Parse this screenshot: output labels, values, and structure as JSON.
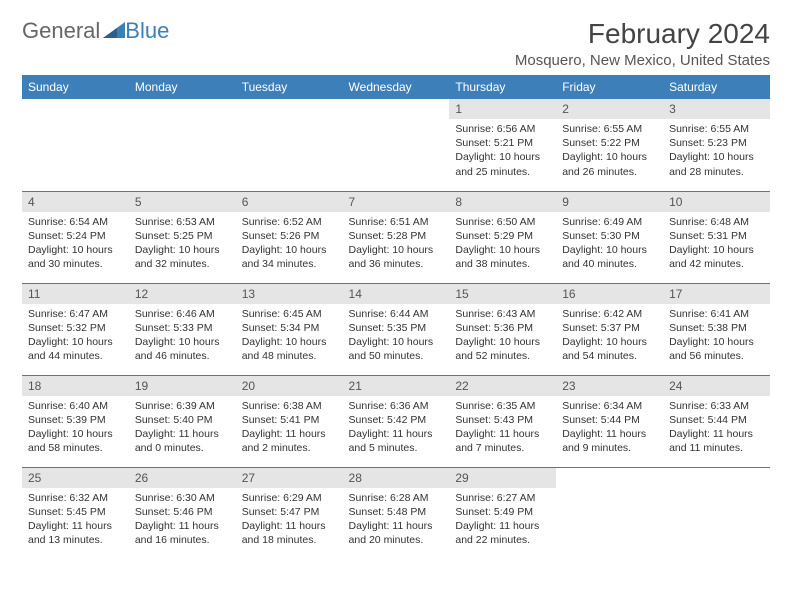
{
  "brand": {
    "part1": "General",
    "part2": "Blue"
  },
  "title": "February 2024",
  "location": "Mosquero, New Mexico, United States",
  "colors": {
    "header_bg": "#3d7fb8",
    "header_text": "#ffffff",
    "daynum_bg": "#e5e5e5",
    "border": "#3d7fb8",
    "text": "#333333",
    "background": "#ffffff"
  },
  "day_headers": [
    "Sunday",
    "Monday",
    "Tuesday",
    "Wednesday",
    "Thursday",
    "Friday",
    "Saturday"
  ],
  "weeks": [
    [
      {
        "empty": true
      },
      {
        "empty": true
      },
      {
        "empty": true
      },
      {
        "empty": true
      },
      {
        "num": "1",
        "sunrise": "Sunrise: 6:56 AM",
        "sunset": "Sunset: 5:21 PM",
        "daylight": "Daylight: 10 hours and 25 minutes."
      },
      {
        "num": "2",
        "sunrise": "Sunrise: 6:55 AM",
        "sunset": "Sunset: 5:22 PM",
        "daylight": "Daylight: 10 hours and 26 minutes."
      },
      {
        "num": "3",
        "sunrise": "Sunrise: 6:55 AM",
        "sunset": "Sunset: 5:23 PM",
        "daylight": "Daylight: 10 hours and 28 minutes."
      }
    ],
    [
      {
        "num": "4",
        "sunrise": "Sunrise: 6:54 AM",
        "sunset": "Sunset: 5:24 PM",
        "daylight": "Daylight: 10 hours and 30 minutes."
      },
      {
        "num": "5",
        "sunrise": "Sunrise: 6:53 AM",
        "sunset": "Sunset: 5:25 PM",
        "daylight": "Daylight: 10 hours and 32 minutes."
      },
      {
        "num": "6",
        "sunrise": "Sunrise: 6:52 AM",
        "sunset": "Sunset: 5:26 PM",
        "daylight": "Daylight: 10 hours and 34 minutes."
      },
      {
        "num": "7",
        "sunrise": "Sunrise: 6:51 AM",
        "sunset": "Sunset: 5:28 PM",
        "daylight": "Daylight: 10 hours and 36 minutes."
      },
      {
        "num": "8",
        "sunrise": "Sunrise: 6:50 AM",
        "sunset": "Sunset: 5:29 PM",
        "daylight": "Daylight: 10 hours and 38 minutes."
      },
      {
        "num": "9",
        "sunrise": "Sunrise: 6:49 AM",
        "sunset": "Sunset: 5:30 PM",
        "daylight": "Daylight: 10 hours and 40 minutes."
      },
      {
        "num": "10",
        "sunrise": "Sunrise: 6:48 AM",
        "sunset": "Sunset: 5:31 PM",
        "daylight": "Daylight: 10 hours and 42 minutes."
      }
    ],
    [
      {
        "num": "11",
        "sunrise": "Sunrise: 6:47 AM",
        "sunset": "Sunset: 5:32 PM",
        "daylight": "Daylight: 10 hours and 44 minutes."
      },
      {
        "num": "12",
        "sunrise": "Sunrise: 6:46 AM",
        "sunset": "Sunset: 5:33 PM",
        "daylight": "Daylight: 10 hours and 46 minutes."
      },
      {
        "num": "13",
        "sunrise": "Sunrise: 6:45 AM",
        "sunset": "Sunset: 5:34 PM",
        "daylight": "Daylight: 10 hours and 48 minutes."
      },
      {
        "num": "14",
        "sunrise": "Sunrise: 6:44 AM",
        "sunset": "Sunset: 5:35 PM",
        "daylight": "Daylight: 10 hours and 50 minutes."
      },
      {
        "num": "15",
        "sunrise": "Sunrise: 6:43 AM",
        "sunset": "Sunset: 5:36 PM",
        "daylight": "Daylight: 10 hours and 52 minutes."
      },
      {
        "num": "16",
        "sunrise": "Sunrise: 6:42 AM",
        "sunset": "Sunset: 5:37 PM",
        "daylight": "Daylight: 10 hours and 54 minutes."
      },
      {
        "num": "17",
        "sunrise": "Sunrise: 6:41 AM",
        "sunset": "Sunset: 5:38 PM",
        "daylight": "Daylight: 10 hours and 56 minutes."
      }
    ],
    [
      {
        "num": "18",
        "sunrise": "Sunrise: 6:40 AM",
        "sunset": "Sunset: 5:39 PM",
        "daylight": "Daylight: 10 hours and 58 minutes."
      },
      {
        "num": "19",
        "sunrise": "Sunrise: 6:39 AM",
        "sunset": "Sunset: 5:40 PM",
        "daylight": "Daylight: 11 hours and 0 minutes."
      },
      {
        "num": "20",
        "sunrise": "Sunrise: 6:38 AM",
        "sunset": "Sunset: 5:41 PM",
        "daylight": "Daylight: 11 hours and 2 minutes."
      },
      {
        "num": "21",
        "sunrise": "Sunrise: 6:36 AM",
        "sunset": "Sunset: 5:42 PM",
        "daylight": "Daylight: 11 hours and 5 minutes."
      },
      {
        "num": "22",
        "sunrise": "Sunrise: 6:35 AM",
        "sunset": "Sunset: 5:43 PM",
        "daylight": "Daylight: 11 hours and 7 minutes."
      },
      {
        "num": "23",
        "sunrise": "Sunrise: 6:34 AM",
        "sunset": "Sunset: 5:44 PM",
        "daylight": "Daylight: 11 hours and 9 minutes."
      },
      {
        "num": "24",
        "sunrise": "Sunrise: 6:33 AM",
        "sunset": "Sunset: 5:44 PM",
        "daylight": "Daylight: 11 hours and 11 minutes."
      }
    ],
    [
      {
        "num": "25",
        "sunrise": "Sunrise: 6:32 AM",
        "sunset": "Sunset: 5:45 PM",
        "daylight": "Daylight: 11 hours and 13 minutes."
      },
      {
        "num": "26",
        "sunrise": "Sunrise: 6:30 AM",
        "sunset": "Sunset: 5:46 PM",
        "daylight": "Daylight: 11 hours and 16 minutes."
      },
      {
        "num": "27",
        "sunrise": "Sunrise: 6:29 AM",
        "sunset": "Sunset: 5:47 PM",
        "daylight": "Daylight: 11 hours and 18 minutes."
      },
      {
        "num": "28",
        "sunrise": "Sunrise: 6:28 AM",
        "sunset": "Sunset: 5:48 PM",
        "daylight": "Daylight: 11 hours and 20 minutes."
      },
      {
        "num": "29",
        "sunrise": "Sunrise: 6:27 AM",
        "sunset": "Sunset: 5:49 PM",
        "daylight": "Daylight: 11 hours and 22 minutes."
      },
      {
        "empty": true
      },
      {
        "empty": true
      }
    ]
  ]
}
